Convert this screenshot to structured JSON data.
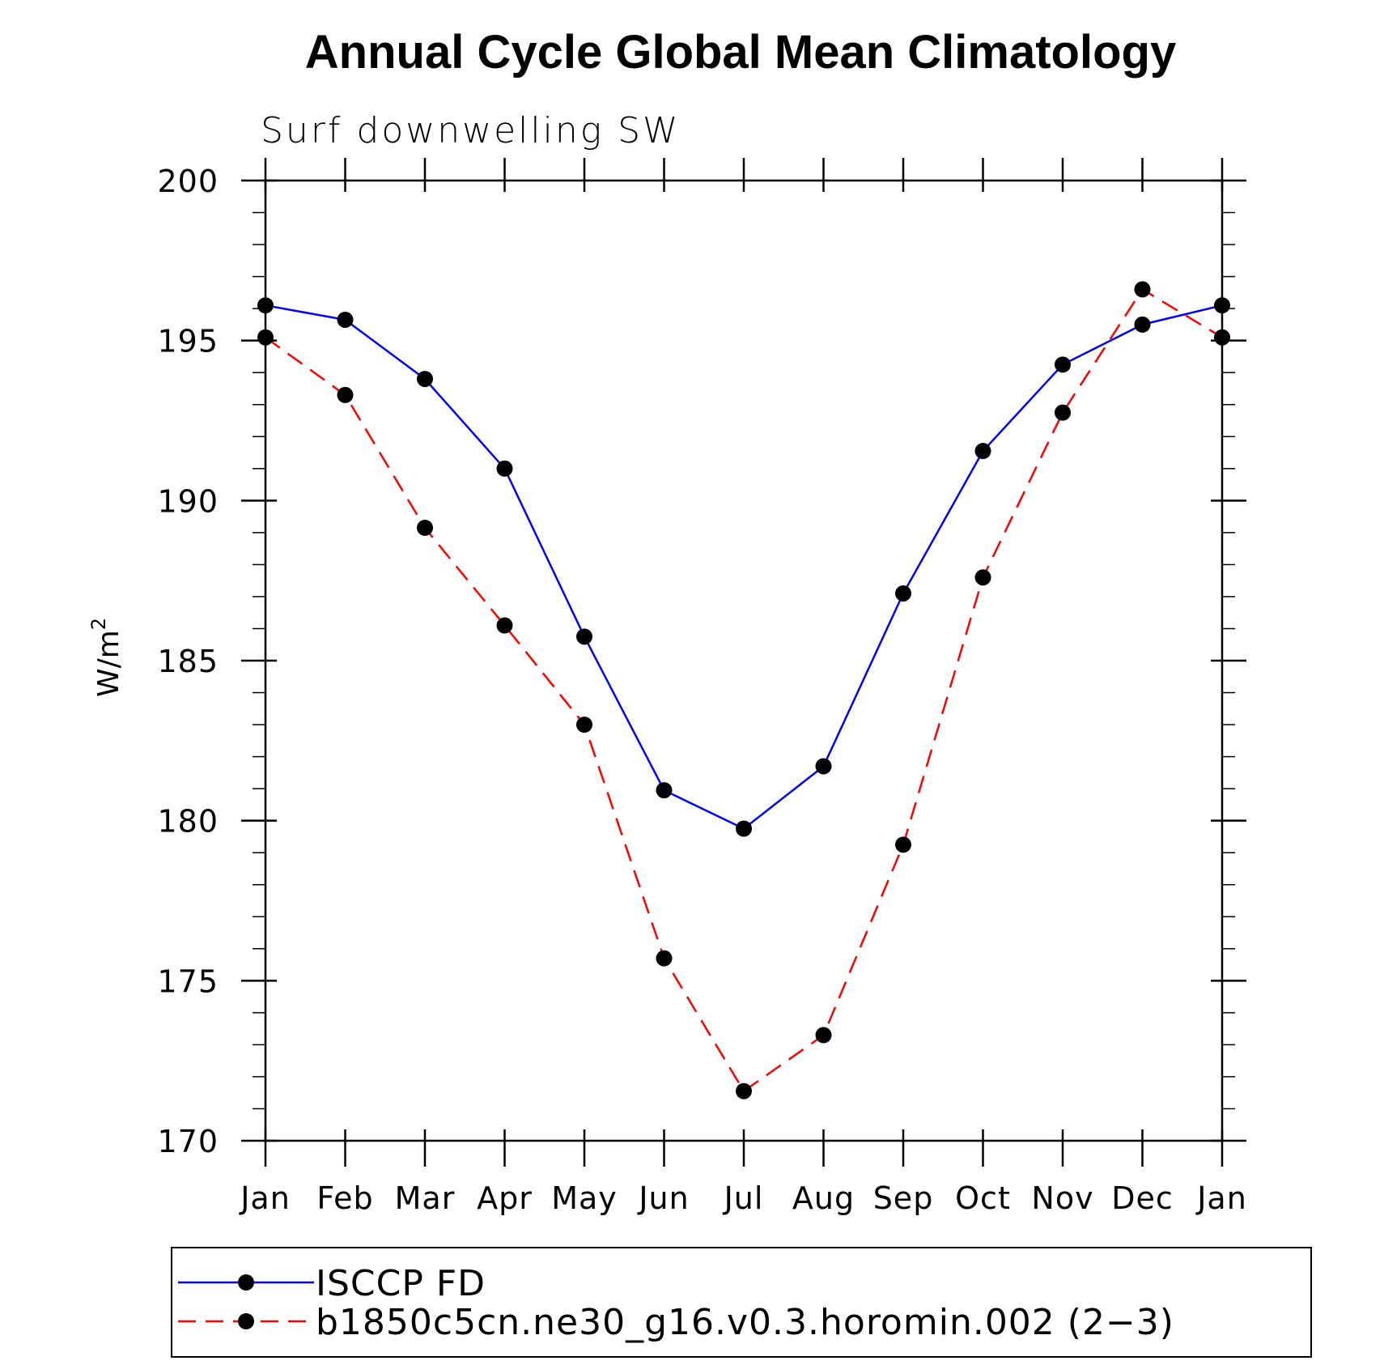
{
  "chart_data": {
    "type": "line",
    "title": "Annual Cycle Global Mean Climatology",
    "subtitle": "Surf downwelling SW",
    "ylabel_base": "W/m",
    "ylabel_sup": "2",
    "xlabel": "",
    "categories": [
      "Jan",
      "Feb",
      "Mar",
      "Apr",
      "May",
      "Jun",
      "Jul",
      "Aug",
      "Sep",
      "Oct",
      "Nov",
      "Dec",
      "Jan"
    ],
    "ylim": [
      170,
      200
    ],
    "yticks": [
      170,
      175,
      180,
      185,
      190,
      195,
      200
    ],
    "yticks_labels": [
      "170",
      "175",
      "180",
      "185",
      "190",
      "195",
      "200"
    ],
    "grid": false,
    "legend_position": "bottom",
    "series": [
      {
        "name": "ISCCP FD",
        "color": "#0000ff",
        "dash": "solid",
        "values": [
          196.1,
          195.65,
          193.8,
          191.0,
          185.75,
          180.95,
          179.75,
          181.7,
          187.1,
          191.55,
          194.25,
          195.5,
          196.1
        ]
      },
      {
        "name": "b1850c5cn.ne30_g16.v0.3.horomin.002 (2−3)",
        "color": "#ff0000",
        "dash": "dashed",
        "values": [
          195.1,
          193.3,
          189.15,
          186.1,
          183.0,
          175.7,
          171.55,
          173.3,
          179.25,
          187.6,
          192.75,
          196.6,
          195.1
        ]
      }
    ],
    "marker_color": "#000000"
  }
}
